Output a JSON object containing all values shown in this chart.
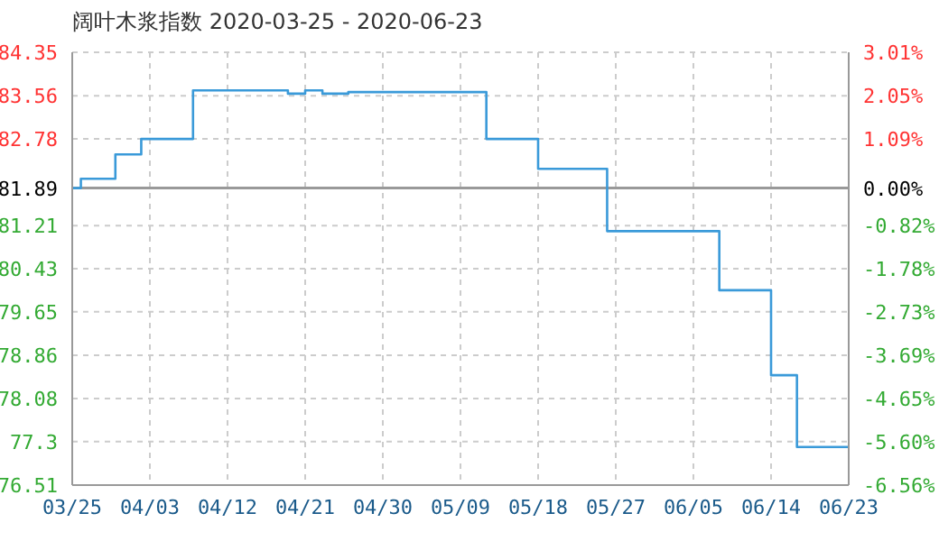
{
  "chart_data": {
    "type": "step",
    "title": "阔叶木浆指数 2020-03-25 - 2020-06-23",
    "x": [
      "2020-03-25",
      "2020-03-26",
      "2020-03-30",
      "2020-04-02",
      "2020-04-08",
      "2020-04-19",
      "2020-04-21",
      "2020-04-23",
      "2020-04-26",
      "2020-05-12",
      "2020-05-18",
      "2020-05-26",
      "2020-06-08",
      "2020-06-14",
      "2020-06-17",
      "2020-06-23"
    ],
    "series": [
      {
        "color": "#3a9ad9",
        "values": [
          81.89,
          82.06,
          82.5,
          82.78,
          83.66,
          83.6,
          83.66,
          83.6,
          83.63,
          82.78,
          82.24,
          81.11,
          80.04,
          78.5,
          77.2,
          77.2
        ]
      }
    ],
    "xlim": [
      "2020-03-25",
      "2020-06-23"
    ],
    "xticks": [
      {
        "value": "2020-03-25",
        "label": "03/25"
      },
      {
        "value": "2020-04-03",
        "label": "04/03"
      },
      {
        "value": "2020-04-12",
        "label": "04/12"
      },
      {
        "value": "2020-04-21",
        "label": "04/21"
      },
      {
        "value": "2020-04-30",
        "label": "04/30"
      },
      {
        "value": "2020-05-09",
        "label": "05/09"
      },
      {
        "value": "2020-05-18",
        "label": "05/18"
      },
      {
        "value": "2020-05-27",
        "label": "05/27"
      },
      {
        "value": "2020-06-05",
        "label": "06/05"
      },
      {
        "value": "2020-06-14",
        "label": "06/14"
      },
      {
        "value": "2020-06-23",
        "label": "06/23"
      }
    ],
    "ylim": [
      76.51,
      84.35
    ],
    "yticks": [
      76.51,
      77.3,
      78.08,
      78.86,
      79.65,
      80.43,
      81.21,
      81.89,
      82.78,
      83.56,
      84.35
    ],
    "y2lim": [
      -6.56,
      3.01
    ],
    "y2ticks": [
      {
        "value": -6.56,
        "label": "-6.56%"
      },
      {
        "value": -5.6,
        "label": "-5.60%"
      },
      {
        "value": -4.65,
        "label": "-4.65%"
      },
      {
        "value": -3.69,
        "label": "-3.69%"
      },
      {
        "value": -2.73,
        "label": "-2.73%"
      },
      {
        "value": -1.78,
        "label": "-1.78%"
      },
      {
        "value": -0.82,
        "label": "-0.82%"
      },
      {
        "value": 0,
        "label": "0.00%"
      },
      {
        "value": 1.09,
        "label": "1.09%"
      },
      {
        "value": 2.05,
        "label": "2.05%"
      },
      {
        "value": 3.01,
        "label": "3.01%"
      }
    ],
    "ref_lines": [
      {
        "axis": "y",
        "value": 81.89,
        "color": "#999999"
      }
    ],
    "grid": true,
    "legend": false,
    "marker": "none",
    "line_style": "solid"
  }
}
